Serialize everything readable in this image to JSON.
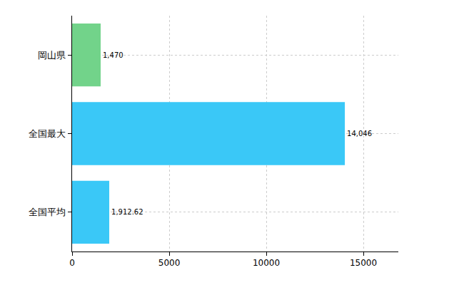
{
  "chart_data": {
    "type": "bar",
    "orientation": "horizontal",
    "categories": [
      "岡山県",
      "全国最大",
      "全国平均"
    ],
    "values": [
      1470,
      14046,
      1912.62
    ],
    "value_labels": [
      "1,470",
      "14,046",
      "1,912.62"
    ],
    "colors": [
      "#72d38a",
      "#3ac8f7",
      "#3ac8f7"
    ],
    "xlim": [
      0,
      16800
    ],
    "xticks": [
      0,
      5000,
      10000,
      15000
    ],
    "grid": true,
    "data_labels": true
  }
}
